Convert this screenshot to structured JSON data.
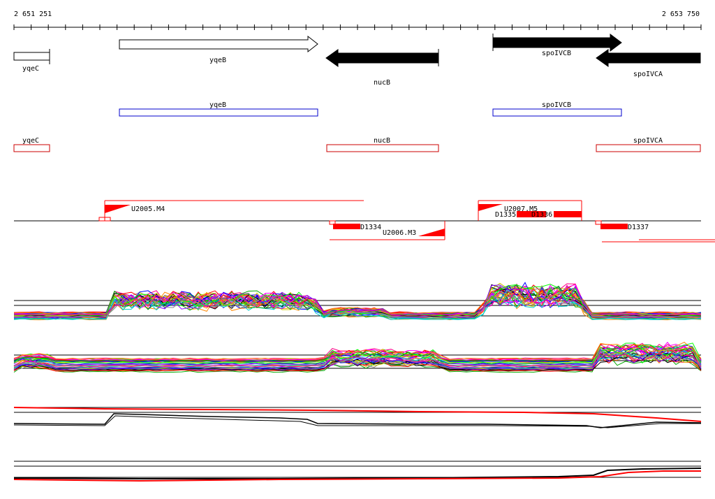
{
  "coords": {
    "start": "2 651 251",
    "end": "2 653 750"
  },
  "genes_arrows": [
    {
      "id": "yqeC",
      "label": "yqeC",
      "strand": "none",
      "fill": "#ffffff"
    },
    {
      "id": "yqeB",
      "label": "yqeB",
      "strand": "+",
      "fill": "#ffffff"
    },
    {
      "id": "nucB",
      "label": "nucB",
      "strand": "-",
      "fill": "#000000"
    },
    {
      "id": "spoIVCB",
      "label": "spoIVCB",
      "strand": "+",
      "fill": "#000000"
    },
    {
      "id": "spoIVCA",
      "label": "spoIVCA",
      "strand": "-",
      "fill": "#000000"
    }
  ],
  "genes_boxes": [
    {
      "id": "yqeB",
      "label": "yqeB",
      "color": "#0000cc"
    },
    {
      "id": "spoIVCB",
      "label": "spoIVCB",
      "color": "#0000cc"
    },
    {
      "id": "yqeC",
      "label": "yqeC",
      "color": "#cc0000"
    },
    {
      "id": "nucB",
      "label": "nucB",
      "color": "#cc0000"
    },
    {
      "id": "spoIVCA",
      "label": "spoIVCA",
      "color": "#cc0000"
    }
  ],
  "features": {
    "U2005": "U2005.M4",
    "U2006": "U2006.M3",
    "U2007": "U2007.M5",
    "D1334": "D1334",
    "D1335": "D1335",
    "D1336": "D1336",
    "D1337": "D1337"
  },
  "colors": {
    "feature": "#ff0000",
    "axis": "#000000",
    "arrow_plus": "#ffffff",
    "arrow_minus": "#000000"
  },
  "track_colors": [
    "#000000",
    "#ff0000",
    "#00aa00",
    "#0000ff",
    "#ff00ff",
    "#00cccc",
    "#cccc00",
    "#ff8800",
    "#8800ff",
    "#00ff00",
    "#888888",
    "#ff0088"
  ]
}
